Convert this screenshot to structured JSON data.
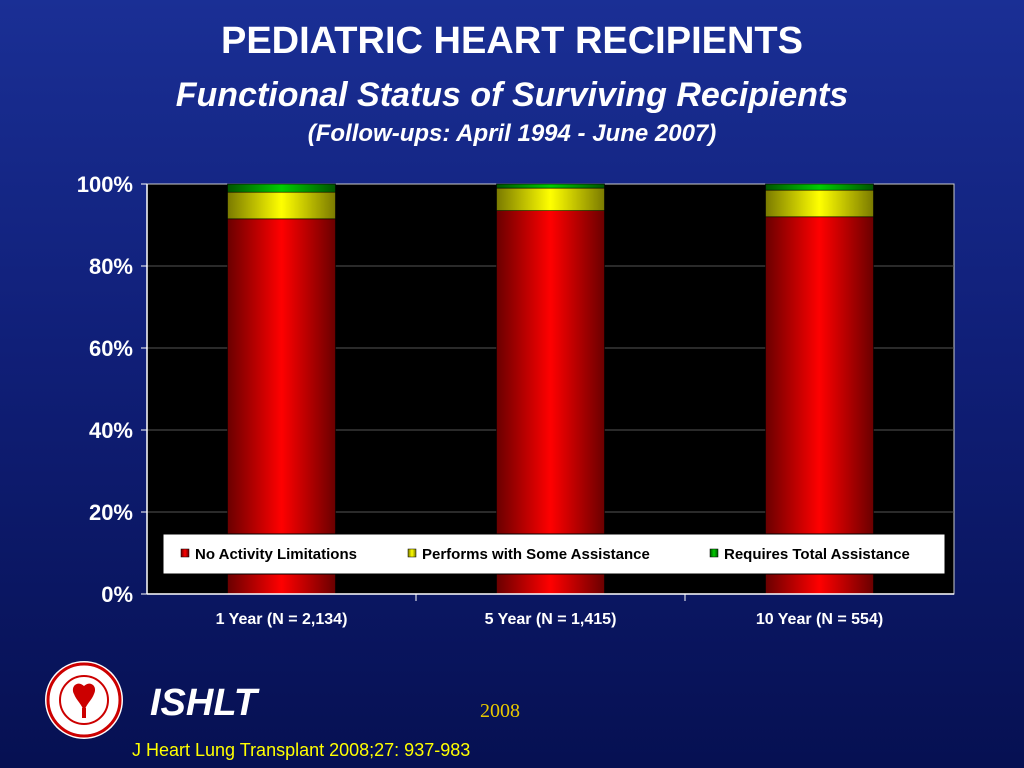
{
  "title": "PEDIATRIC HEART RECIPIENTS",
  "subtitle": "Functional Status of Surviving Recipients",
  "subsubtitle": "(Follow-ups: April 1994 - June 2007)",
  "footer": {
    "brand": "ISHLT",
    "year": "2008",
    "citation": "J Heart Lung Transplant 2008;27: 937-983",
    "logo_text": "INTERNATIONAL SOCIETY FOR HEART & LUNG TRANSPLANTATION"
  },
  "colors": {
    "no_activity": "#ff0000",
    "some_assistance": "#ffff00",
    "total_assistance": "#00cc00",
    "plot_bg": "#000000",
    "accent_text": "#ffff00"
  },
  "chart_data": {
    "type": "bar",
    "stacked": true,
    "percent_stacked": true,
    "categories": [
      "1 Year (N = 2,134)",
      "5 Year (N = 1,415)",
      "10 Year (N = 554)"
    ],
    "series": [
      {
        "name": "No Activity Limitations",
        "values": [
          91.5,
          93.5,
          92.0
        ]
      },
      {
        "name": "Performs with Some Assistance",
        "values": [
          6.5,
          5.5,
          6.5
        ]
      },
      {
        "name": "Requires Total Assistance",
        "values": [
          2.0,
          1.0,
          1.5
        ]
      }
    ],
    "yticks": [
      "0%",
      "20%",
      "40%",
      "60%",
      "80%",
      "100%"
    ],
    "ylim": [
      0,
      100
    ],
    "grid": true,
    "legend_position": "bottom-inside"
  }
}
